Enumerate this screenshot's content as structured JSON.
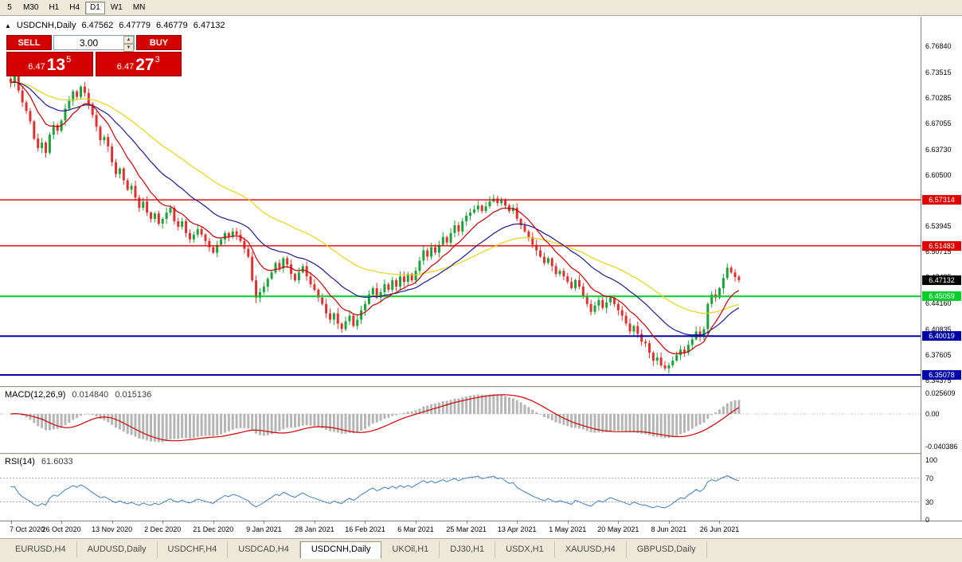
{
  "toolbar": {
    "timeframes": [
      {
        "label": "5",
        "active": false
      },
      {
        "label": "M30",
        "active": false
      },
      {
        "label": "H1",
        "active": false
      },
      {
        "label": "H4",
        "active": false
      },
      {
        "label": "D1",
        "active": true
      },
      {
        "label": "W1",
        "active": false
      },
      {
        "label": "MN",
        "active": false
      }
    ]
  },
  "chart_header": {
    "collapse_icon": "▲",
    "title": "USDCNH,Daily",
    "open": "6.47562",
    "high": "6.47779",
    "low": "6.46779",
    "close": "6.47132"
  },
  "trade_panel": {
    "sell_label": "SELL",
    "buy_label": "BUY",
    "volume": "3.00",
    "sell_price": {
      "small": "6.47",
      "big": "13",
      "sup": "5"
    },
    "buy_price": {
      "small": "6.47",
      "big": "27",
      "sup": "3"
    }
  },
  "indicators": {
    "macd": {
      "label": "MACD(12,26,9)",
      "main_value": "0.014840",
      "signal_value": "0.015136",
      "fast": 12,
      "slow": 26,
      "signal": 9,
      "y_ticks": [
        "0.025609",
        "0.00",
        "-0.040386"
      ]
    },
    "rsi": {
      "label": "RSI(14)",
      "value": "61.6033",
      "period": 14,
      "levels": [
        70,
        30
      ],
      "y_ticks": [
        "100",
        "70",
        "30",
        "0"
      ]
    }
  },
  "chart_data": {
    "type": "candlestick",
    "symbol": "USDCNH",
    "timeframe": "Daily",
    "title": "USDCNH,Daily",
    "ylim": [
      6.34375,
      6.7684
    ],
    "y_ticks": [
      "6.76840",
      "6.73515",
      "6.70285",
      "6.67055",
      "6.63730",
      "6.60500",
      "6.57270",
      "6.53945",
      "6.50715",
      "6.47485",
      "6.44160",
      "6.40835",
      "6.37605",
      "6.34375"
    ],
    "x_labels": [
      {
        "index": 0,
        "label": "7 Oct 2020"
      },
      {
        "index": 13,
        "label": "26 Oct 2020"
      },
      {
        "index": 26,
        "label": "13 Nov 2020"
      },
      {
        "index": 39,
        "label": "2 Dec 2020"
      },
      {
        "index": 52,
        "label": "21 Dec 2020"
      },
      {
        "index": 65,
        "label": "9 Jan 2021"
      },
      {
        "index": 78,
        "label": "28 Jan 2021"
      },
      {
        "index": 91,
        "label": "16 Feb 2021"
      },
      {
        "index": 104,
        "label": "6 Mar 2021"
      },
      {
        "index": 117,
        "label": "25 Mar 2021"
      },
      {
        "index": 130,
        "label": "13 Apr 2021"
      },
      {
        "index": 143,
        "label": "1 May 2021"
      },
      {
        "index": 156,
        "label": "20 May 2021"
      },
      {
        "index": 169,
        "label": "8 Jun 2021"
      },
      {
        "index": 182,
        "label": "26 Jun 2021"
      }
    ],
    "closes": [
      6.722,
      6.731,
      6.712,
      6.697,
      6.686,
      6.673,
      6.651,
      6.639,
      6.646,
      6.633,
      6.656,
      6.668,
      6.661,
      6.674,
      6.689,
      6.699,
      6.711,
      6.704,
      6.717,
      6.709,
      6.695,
      6.681,
      6.666,
      6.649,
      6.653,
      6.641,
      6.621,
      6.606,
      6.613,
      6.598,
      6.586,
      6.591,
      6.576,
      6.563,
      6.571,
      6.557,
      6.549,
      6.556,
      6.543,
      6.549,
      6.557,
      6.563,
      6.546,
      6.539,
      6.546,
      6.531,
      6.523,
      6.529,
      6.536,
      6.529,
      6.521,
      6.513,
      6.506,
      6.516,
      6.523,
      6.531,
      6.526,
      6.533,
      6.529,
      6.521,
      6.511,
      6.501,
      6.471,
      6.449,
      6.456,
      6.463,
      6.473,
      6.481,
      6.493,
      6.486,
      6.499,
      6.491,
      6.479,
      6.471,
      6.481,
      6.489,
      6.476,
      6.466,
      6.459,
      6.449,
      6.441,
      6.429,
      6.421,
      6.429,
      6.416,
      6.409,
      6.419,
      6.426,
      6.413,
      6.421,
      6.433,
      6.441,
      6.453,
      6.461,
      6.449,
      6.456,
      6.466,
      6.459,
      6.471,
      6.463,
      6.476,
      6.469,
      6.479,
      6.471,
      6.483,
      6.496,
      6.509,
      6.501,
      6.513,
      6.506,
      6.516,
      6.526,
      6.519,
      6.531,
      6.541,
      6.533,
      6.546,
      6.553,
      6.557,
      6.561,
      6.566,
      6.559,
      6.565,
      6.571,
      6.575,
      6.569,
      6.573,
      6.566,
      6.559,
      6.563,
      6.549,
      6.541,
      6.533,
      6.526,
      6.516,
      6.509,
      6.501,
      6.493,
      6.499,
      6.489,
      6.479,
      6.483,
      6.476,
      6.469,
      6.461,
      6.471,
      6.463,
      6.451,
      6.441,
      6.431,
      6.439,
      6.446,
      6.436,
      6.443,
      6.449,
      6.441,
      6.433,
      6.426,
      6.416,
      6.406,
      6.413,
      6.403,
      6.393,
      6.391,
      6.379,
      6.369,
      6.373,
      6.363,
      6.359,
      6.363,
      6.369,
      6.376,
      6.383,
      6.379,
      6.389,
      6.396,
      6.406,
      6.399,
      6.409,
      6.441,
      6.453,
      6.449,
      6.461,
      6.474,
      6.487,
      6.481,
      6.475,
      6.4713
    ],
    "last_candle": {
      "open": 6.47562,
      "high": 6.47779,
      "low": 6.46779,
      "close": 6.47132
    },
    "moving_averages": [
      {
        "period": 50,
        "color_key": "ma_slow"
      },
      {
        "period": 25,
        "color_key": "ma_mid"
      },
      {
        "period": 10,
        "color_key": "ma_fast"
      }
    ],
    "hlines": [
      {
        "price": 6.57314,
        "label": "6.57314",
        "color_key": "level_red",
        "width": 1.4
      },
      {
        "price": 6.51483,
        "label": "6.51483",
        "color_key": "level_red",
        "width": 1.4
      },
      {
        "price": 6.47132,
        "label": "6.47132",
        "color_key": "bid_tag",
        "tag_only": true
      },
      {
        "price": 6.45059,
        "label": "6.45059",
        "color_key": "level_green",
        "width": 2
      },
      {
        "price": 6.40019,
        "label": "6.40019",
        "color_key": "level_blue",
        "width": 2
      },
      {
        "price": 6.35078,
        "label": "6.35078",
        "color_key": "level_blue",
        "width": 2
      }
    ]
  },
  "bottom_tabs": {
    "tabs": [
      "EURUSD,H4",
      "AUDUSD,Daily",
      "USDCHF,H4",
      "USDCAD,H4",
      "USDCNH,Daily",
      "UKOil,H1",
      "DJ30,H1",
      "USDX,H1",
      "XAUUSD,H4",
      "GBPUSD,Daily"
    ],
    "active": "USDCNH,Daily"
  },
  "colors": {
    "candle_up": "#1da13a",
    "candle_down": "#e03131",
    "ma_fast": "#c40000",
    "ma_mid": "#1a1a8c",
    "ma_slow": "#e6d415",
    "macd_histogram": "#b5b5b5",
    "macd_signal": "#cc0000",
    "rsi_line": "#3d7dbf",
    "grid_dotted": "#a8a8a8",
    "level_red": "#e00000",
    "level_green": "#00ce2c",
    "level_blue": "#0000a8",
    "bid_tag": "#000000"
  }
}
